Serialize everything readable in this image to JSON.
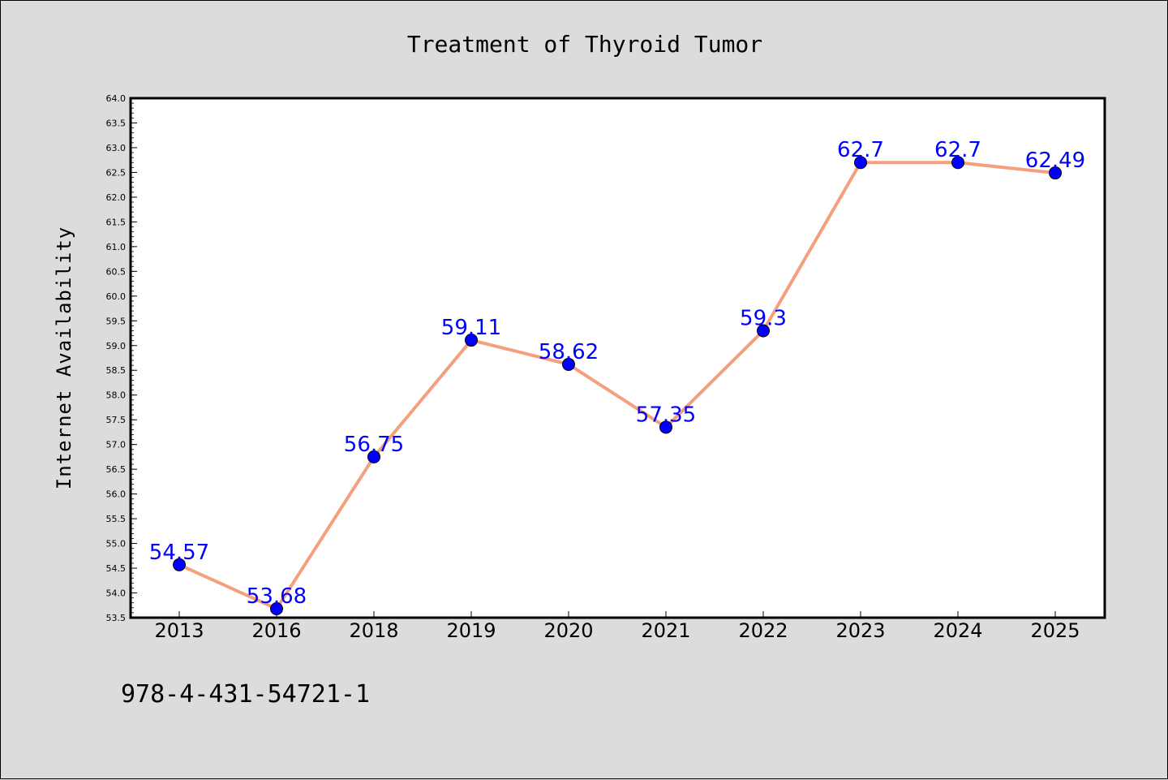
{
  "chart_data": {
    "type": "line",
    "title": "Treatment of Thyroid Tumor",
    "xlabel": "",
    "ylabel": "Internet Availability",
    "categories": [
      "2013",
      "2016",
      "2018",
      "2019",
      "2020",
      "2021",
      "2022",
      "2023",
      "2024",
      "2025"
    ],
    "values": [
      54.57,
      53.68,
      56.75,
      59.11,
      58.62,
      57.35,
      59.3,
      62.7,
      62.7,
      62.49
    ],
    "data_labels": [
      "54.57",
      "53.68",
      "56.75",
      "59.11",
      "58.62",
      "57.35",
      "59.3",
      "62.7",
      "62.7",
      "62.49"
    ],
    "ylim": [
      53.5,
      64.0
    ],
    "yticks": [
      "53.5",
      "54.0",
      "54.5",
      "55.0",
      "55.5",
      "56.0",
      "56.5",
      "57.0",
      "57.5",
      "58.0",
      "58.5",
      "59.0",
      "59.5",
      "60.0",
      "60.5",
      "61.0",
      "61.5",
      "62.0",
      "62.5",
      "63.0",
      "63.5",
      "64.0"
    ],
    "grid": false,
    "legend": "none",
    "colors": {
      "line": "#f4a07f",
      "marker": "#0000ff",
      "label": "#0000ff",
      "plot_background": "#ffffff",
      "figure_background": "#dcdcdc"
    }
  },
  "footer": {
    "text": "978-4-431-54721-1"
  }
}
